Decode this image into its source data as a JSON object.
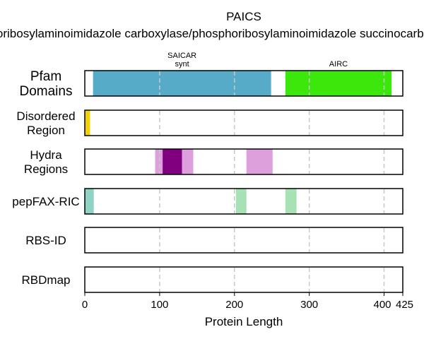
{
  "chart_data": {
    "type": "bar",
    "title": "PAICS",
    "subtitle": "phosphoribosylaminoimidazole carboxylase/phosphoribosylaminoimidazole succinocarboxamide synthetase",
    "xlabel": "Protein Length",
    "xlim": [
      0,
      425
    ],
    "xticks": [
      0,
      100,
      200,
      300,
      400,
      425
    ],
    "grid": "vertical dashed at 100, 200, 300, 400",
    "tracks": [
      {
        "label": "Pfam\nDomains",
        "segments": [
          {
            "start": 11,
            "end": 249,
            "color": "#55abc8",
            "label": "SAICAR\nsynt"
          },
          {
            "start": 268,
            "end": 410,
            "color": "#3ce80b",
            "label": "AIRC"
          }
        ]
      },
      {
        "label": "Disordered\nRegion",
        "segments": [
          {
            "start": 0,
            "end": 7,
            "color": "#f2d200"
          }
        ]
      },
      {
        "label": "Hydra\nRegions",
        "segments": [
          {
            "start": 94,
            "end": 104,
            "color": "#dda0dd"
          },
          {
            "start": 104,
            "end": 130,
            "color": "#800080"
          },
          {
            "start": 130,
            "end": 145,
            "color": "#dda0dd"
          },
          {
            "start": 216,
            "end": 251,
            "color": "#dda0dd"
          }
        ]
      },
      {
        "label": "pepFAX-RIC",
        "segments": [
          {
            "start": 0,
            "end": 12,
            "color": "#8fd3c4"
          },
          {
            "start": 202,
            "end": 216,
            "color": "#a8e2b4"
          },
          {
            "start": 268,
            "end": 283,
            "color": "#a8e2b4"
          }
        ]
      },
      {
        "label": "RBS-ID",
        "segments": []
      },
      {
        "label": "RBDmap",
        "segments": []
      }
    ]
  }
}
